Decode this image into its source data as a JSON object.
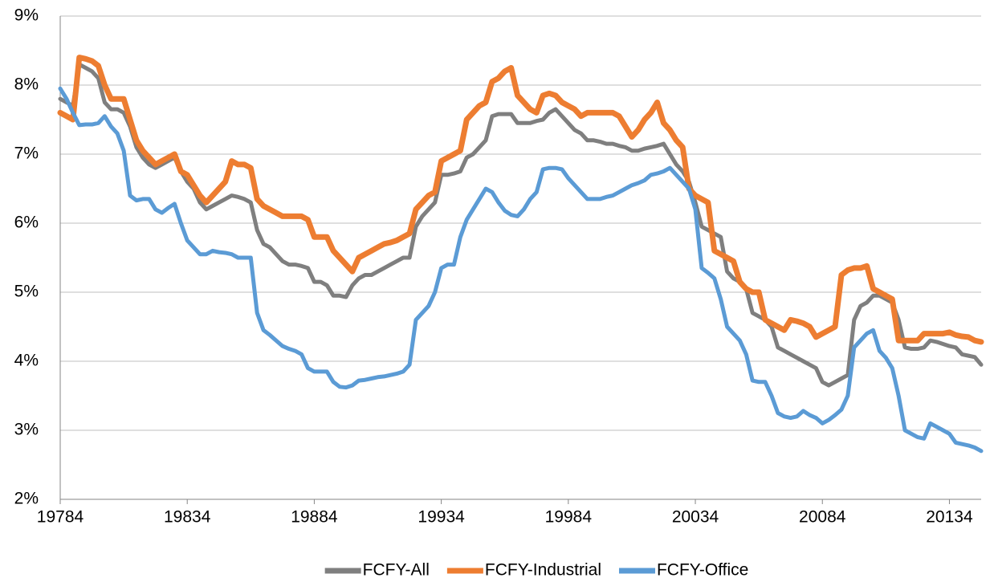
{
  "chart_data": {
    "type": "line",
    "categories": [
      "19784",
      null,
      null,
      null,
      null,
      null,
      null,
      null,
      null,
      null,
      null,
      null,
      null,
      null,
      null,
      null,
      null,
      null,
      null,
      null,
      "19834",
      null,
      null,
      null,
      null,
      null,
      null,
      null,
      null,
      null,
      null,
      null,
      null,
      null,
      null,
      null,
      null,
      null,
      null,
      null,
      "19884",
      null,
      null,
      null,
      null,
      null,
      null,
      null,
      null,
      null,
      null,
      null,
      null,
      null,
      null,
      null,
      null,
      null,
      null,
      null,
      "19934",
      null,
      null,
      null,
      null,
      null,
      null,
      null,
      null,
      null,
      null,
      null,
      null,
      null,
      null,
      null,
      null,
      null,
      null,
      null,
      "19984",
      null,
      null,
      null,
      null,
      null,
      null,
      null,
      null,
      null,
      null,
      null,
      null,
      null,
      null,
      null,
      null,
      null,
      null,
      null,
      "20034",
      null,
      null,
      null,
      null,
      null,
      null,
      null,
      null,
      null,
      null,
      null,
      null,
      null,
      null,
      null,
      null,
      null,
      null,
      null,
      "20084",
      null,
      null,
      null,
      null,
      null,
      null,
      null,
      null,
      null,
      null,
      null,
      null,
      null,
      null,
      null,
      null,
      null,
      null,
      null,
      "20134",
      null,
      null,
      null,
      null,
      null
    ],
    "series": [
      {
        "name": "FCFY-All",
        "color": "#7f7f7f",
        "values": [
          7.8,
          7.75,
          7.7,
          8.3,
          8.25,
          8.2,
          8.1,
          7.75,
          7.65,
          7.65,
          7.6,
          7.4,
          7.1,
          6.95,
          6.85,
          6.8,
          6.85,
          6.9,
          6.95,
          6.75,
          6.6,
          6.5,
          6.3,
          6.2,
          6.25,
          6.3,
          6.35,
          6.4,
          6.38,
          6.35,
          6.3,
          5.9,
          5.7,
          5.65,
          5.55,
          5.45,
          5.4,
          5.4,
          5.38,
          5.35,
          5.15,
          5.15,
          5.1,
          4.95,
          4.95,
          4.93,
          5.1,
          5.2,
          5.25,
          5.25,
          5.3,
          5.35,
          5.4,
          5.45,
          5.5,
          5.5,
          5.95,
          6.1,
          6.2,
          6.3,
          6.7,
          6.7,
          6.72,
          6.75,
          6.95,
          7.0,
          7.1,
          7.2,
          7.55,
          7.58,
          7.58,
          7.58,
          7.45,
          7.45,
          7.45,
          7.48,
          7.5,
          7.6,
          7.65,
          7.55,
          7.45,
          7.35,
          7.3,
          7.2,
          7.2,
          7.18,
          7.15,
          7.15,
          7.12,
          7.1,
          7.05,
          7.05,
          7.08,
          7.1,
          7.12,
          7.15,
          7.0,
          6.85,
          6.75,
          6.6,
          6.3,
          5.95,
          5.9,
          5.85,
          5.8,
          5.3,
          5.2,
          5.15,
          5.05,
          4.7,
          4.65,
          4.6,
          4.5,
          4.2,
          4.15,
          4.1,
          4.05,
          4.0,
          3.95,
          3.9,
          3.7,
          3.65,
          3.7,
          3.75,
          3.8,
          4.6,
          4.8,
          4.85,
          4.95,
          4.95,
          4.9,
          4.85,
          4.6,
          4.2,
          4.18,
          4.18,
          4.2,
          4.3,
          4.28,
          4.25,
          4.22,
          4.2,
          4.1,
          4.08,
          4.06,
          3.95
        ]
      },
      {
        "name": "FCFY-Industrial",
        "color": "#ed7d31",
        "values": [
          7.6,
          7.55,
          7.5,
          8.4,
          8.38,
          8.35,
          8.28,
          8.0,
          7.8,
          7.8,
          7.8,
          7.5,
          7.2,
          7.05,
          6.95,
          6.85,
          6.9,
          6.95,
          7.0,
          6.75,
          6.7,
          6.55,
          6.4,
          6.3,
          6.4,
          6.5,
          6.6,
          6.9,
          6.85,
          6.85,
          6.8,
          6.35,
          6.25,
          6.2,
          6.15,
          6.1,
          6.1,
          6.1,
          6.1,
          6.05,
          5.8,
          5.8,
          5.8,
          5.6,
          5.5,
          5.4,
          5.3,
          5.5,
          5.55,
          5.6,
          5.65,
          5.7,
          5.72,
          5.75,
          5.8,
          5.85,
          6.2,
          6.3,
          6.4,
          6.45,
          6.9,
          6.95,
          7.0,
          7.05,
          7.5,
          7.6,
          7.7,
          7.75,
          8.05,
          8.1,
          8.2,
          8.25,
          7.85,
          7.75,
          7.65,
          7.6,
          7.85,
          7.88,
          7.85,
          7.75,
          7.7,
          7.65,
          7.55,
          7.6,
          7.6,
          7.6,
          7.6,
          7.6,
          7.55,
          7.4,
          7.25,
          7.35,
          7.5,
          7.6,
          7.75,
          7.45,
          7.35,
          7.2,
          7.1,
          6.5,
          6.4,
          6.35,
          6.3,
          5.6,
          5.55,
          5.5,
          5.45,
          5.15,
          5.05,
          5.0,
          5.0,
          4.6,
          4.55,
          4.5,
          4.45,
          4.6,
          4.58,
          4.55,
          4.5,
          4.35,
          4.4,
          4.45,
          4.5,
          5.25,
          5.32,
          5.35,
          5.35,
          5.38,
          5.05,
          5.0,
          4.95,
          4.9,
          4.3,
          4.3,
          4.3,
          4.3,
          4.4,
          4.4,
          4.4,
          4.4,
          4.42,
          4.38,
          4.36,
          4.35,
          4.3,
          4.28
        ]
      },
      {
        "name": "FCFY-Office",
        "color": "#5b9bd5",
        "values": [
          7.95,
          7.8,
          7.6,
          7.42,
          7.43,
          7.43,
          7.45,
          7.55,
          7.4,
          7.3,
          7.05,
          6.4,
          6.33,
          6.35,
          6.35,
          6.2,
          6.15,
          6.22,
          6.28,
          6.0,
          5.75,
          5.65,
          5.55,
          5.55,
          5.6,
          5.58,
          5.57,
          5.55,
          5.5,
          5.5,
          5.5,
          4.7,
          4.45,
          4.38,
          4.3,
          4.22,
          4.18,
          4.15,
          4.1,
          3.9,
          3.85,
          3.85,
          3.85,
          3.7,
          3.63,
          3.62,
          3.65,
          3.72,
          3.73,
          3.75,
          3.77,
          3.78,
          3.8,
          3.82,
          3.85,
          3.95,
          4.6,
          4.7,
          4.8,
          5.0,
          5.35,
          5.4,
          5.4,
          5.8,
          6.05,
          6.2,
          6.35,
          6.5,
          6.45,
          6.3,
          6.18,
          6.12,
          6.1,
          6.2,
          6.35,
          6.45,
          6.78,
          6.8,
          6.8,
          6.78,
          6.65,
          6.55,
          6.45,
          6.35,
          6.35,
          6.35,
          6.38,
          6.4,
          6.45,
          6.5,
          6.55,
          6.58,
          6.62,
          6.7,
          6.72,
          6.75,
          6.8,
          6.7,
          6.6,
          6.5,
          6.2,
          5.35,
          5.28,
          5.2,
          4.9,
          4.5,
          4.4,
          4.3,
          4.1,
          3.72,
          3.7,
          3.7,
          3.5,
          3.25,
          3.2,
          3.18,
          3.2,
          3.28,
          3.22,
          3.18,
          3.1,
          3.15,
          3.22,
          3.3,
          3.5,
          4.2,
          4.3,
          4.4,
          4.45,
          4.15,
          4.05,
          3.9,
          3.5,
          3.0,
          2.95,
          2.9,
          2.88,
          3.1,
          3.05,
          3.0,
          2.95,
          2.82,
          2.8,
          2.78,
          2.75,
          2.7
        ]
      }
    ],
    "ylim": [
      2,
      9
    ],
    "yticks": [
      {
        "value": 2,
        "label": "2%"
      },
      {
        "value": 3,
        "label": "3%"
      },
      {
        "value": 4,
        "label": "4%"
      },
      {
        "value": 5,
        "label": "5%"
      },
      {
        "value": 6,
        "label": "6%"
      },
      {
        "value": 7,
        "label": "7%"
      },
      {
        "value": 8,
        "label": "8%"
      },
      {
        "value": 9,
        "label": "9%"
      }
    ],
    "grid": true,
    "legend": "bottom"
  }
}
